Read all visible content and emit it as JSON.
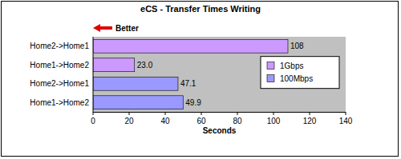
{
  "chart_data": {
    "type": "bar",
    "orientation": "horizontal",
    "title": "eCS - Transfer Times Writing",
    "annotation": "Better",
    "xlabel": "Seconds",
    "categories": [
      "Home2->Home1",
      "Home1->Home2",
      "Home2->Home1",
      "Home1->Home2"
    ],
    "series": [
      {
        "name": "1Gbps",
        "color": "#cc99ff",
        "values": [
          108,
          23.0,
          null,
          null
        ],
        "value_labels": [
          "108",
          "23.0",
          null,
          null
        ]
      },
      {
        "name": "100Mbps",
        "color": "#9999ff",
        "values": [
          null,
          null,
          47.1,
          49.9
        ]
      }
    ],
    "xlim": [
      0,
      140
    ],
    "xticks": [
      0,
      20,
      40,
      60,
      80,
      100,
      120,
      140
    ],
    "grid": false,
    "legend": "right",
    "data_labels": true
  }
}
